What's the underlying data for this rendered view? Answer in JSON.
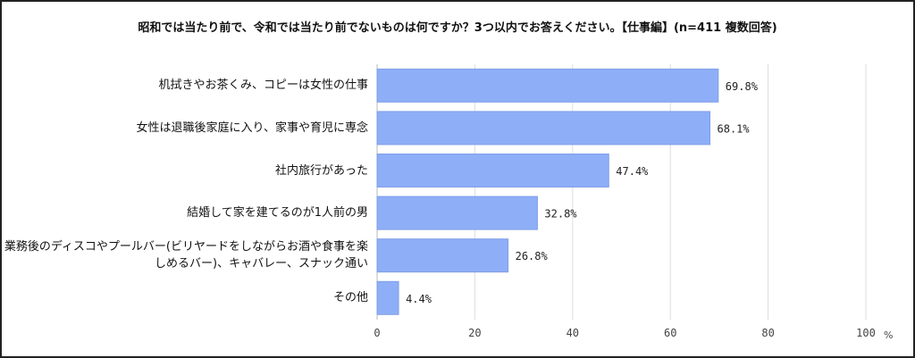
{
  "chart_data": {
    "type": "bar",
    "orientation": "horizontal",
    "title": "昭和では当たり前で、令和では当たり前でないものは何ですか？3つ以内でお答えください。【仕事編】(n=411 複数回答)",
    "categories": [
      "机拭きやお茶くみ、コピーは女性の仕事",
      "女性は退職後家庭に入り、家事や育児に専念",
      "社内旅行があった",
      "結婚して家を建てるのが1人前の男",
      "業務後のディスコやプールバー(ビリヤードをしながらお酒や食事を楽しめるバー)、キャバレー、スナック通い",
      "その他"
    ],
    "values": [
      69.8,
      68.1,
      47.4,
      32.8,
      26.8,
      4.4
    ],
    "data_labels": [
      "69.8%",
      "68.1%",
      "47.4%",
      "32.8%",
      "26.8%",
      "4.4%"
    ],
    "xlim": [
      0,
      100
    ],
    "xticks": [
      "0",
      "20",
      "40",
      "60",
      "80",
      "100"
    ],
    "xunit": "%",
    "grid": true,
    "bar_color": "#8eaef7"
  }
}
